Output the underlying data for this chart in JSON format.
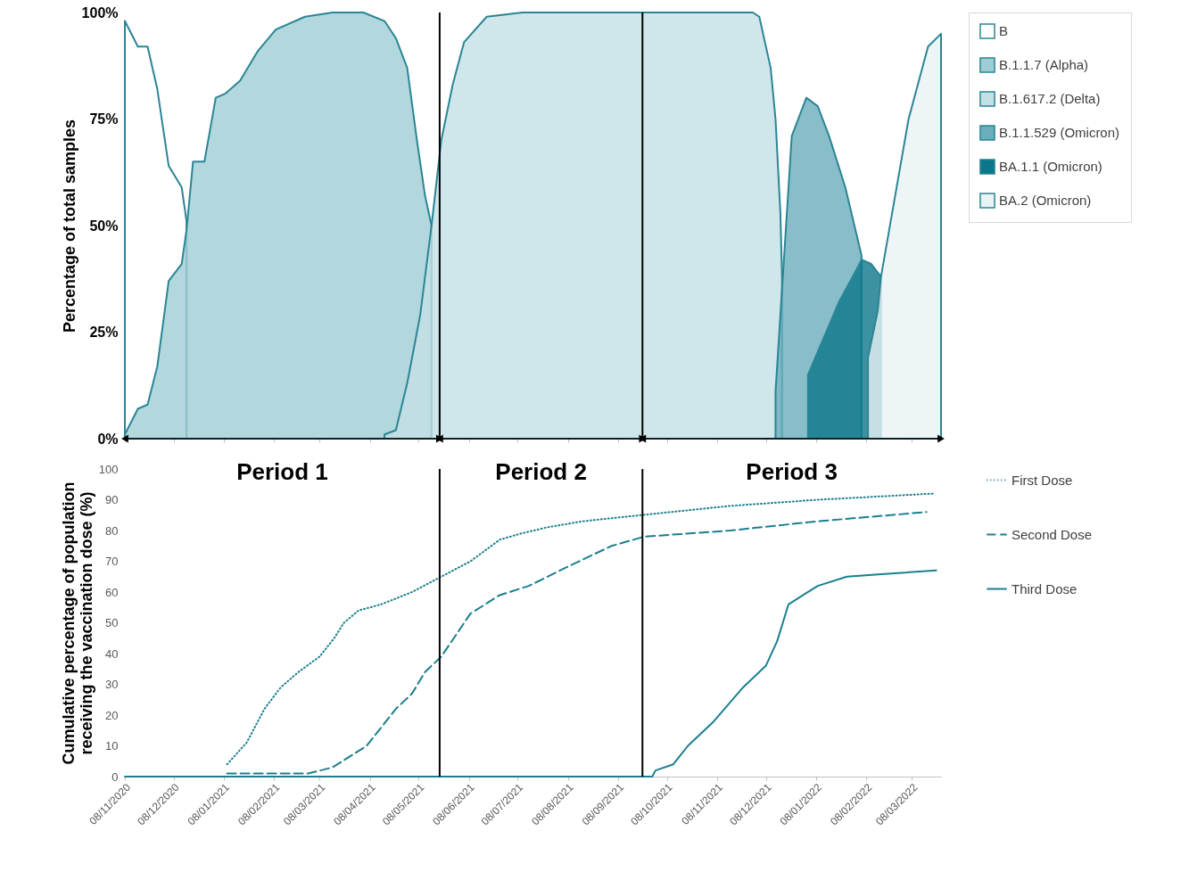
{
  "chart_data": [
    {
      "type": "area",
      "ylabel": "Percentage of total samples",
      "xlim": [
        "2020-11-08",
        "2022-03-26"
      ],
      "ylim": [
        0,
        100
      ],
      "xticks": [
        {
          "value": "2020-11-08",
          "label": null
        },
        {
          "value": "2020-12-08",
          "label": null
        },
        {
          "value": "2021-01-08",
          "label": null
        },
        {
          "value": "2021-02-08",
          "label": null
        },
        {
          "value": "2021-03-08",
          "label": null
        },
        {
          "value": "2021-04-08",
          "label": null
        },
        {
          "value": "2021-05-08",
          "label": null
        },
        {
          "value": "2021-06-08",
          "label": null
        },
        {
          "value": "2021-07-08",
          "label": null
        },
        {
          "value": "2021-08-08",
          "label": null
        },
        {
          "value": "2021-09-08",
          "label": null
        },
        {
          "value": "2021-10-08",
          "label": null
        },
        {
          "value": "2021-11-08",
          "label": null
        },
        {
          "value": "2021-12-08",
          "label": null
        },
        {
          "value": "2022-01-08",
          "label": null
        },
        {
          "value": "2022-02-08",
          "label": null
        },
        {
          "value": "2022-03-08",
          "label": null
        }
      ],
      "yticks": [
        {
          "value": 0,
          "label": "0%"
        },
        {
          "value": 25,
          "label": "25%"
        },
        {
          "value": 50,
          "label": "50%"
        },
        {
          "value": 75,
          "label": "75%"
        },
        {
          "value": 100,
          "label": "100%"
        }
      ],
      "tick_labels": "y",
      "legend": "right",
      "grid": false,
      "ref_lines": [
        {
          "axis": "x",
          "value": "2021-05-21",
          "color": "#000000"
        },
        {
          "axis": "x",
          "value": "2021-09-23",
          "color": "#000000"
        }
      ],
      "series": [
        {
          "name": "B",
          "color": "#ffffff",
          "x": [
            "2020-11-08",
            "2020-11-16",
            "2020-11-22",
            "2020-11-28",
            "2020-12-05",
            "2020-12-13",
            "2020-12-16"
          ],
          "values": [
            98,
            92,
            92,
            82,
            64,
            59,
            51
          ]
        },
        {
          "name": "B.1.1.7 (Alpha)",
          "color": "#9fcdd5",
          "x": [
            "2020-11-08",
            "2020-11-16",
            "2020-11-22",
            "2020-11-28",
            "2020-12-05",
            "2020-12-13",
            "2020-12-16",
            "2020-12-20",
            "2020-12-27",
            "2021-01-03",
            "2021-01-09",
            "2021-01-18",
            "2021-01-29",
            "2021-02-09",
            "2021-02-27",
            "2021-03-16",
            "2021-04-04",
            "2021-04-17",
            "2021-04-24",
            "2021-05-01",
            "2021-05-07",
            "2021-05-12",
            "2021-05-16"
          ],
          "values": [
            1,
            7,
            8,
            17,
            37,
            41,
            49,
            65,
            65,
            80,
            81,
            84,
            91,
            96,
            99,
            100,
            100,
            98,
            94,
            87,
            70,
            57,
            50
          ]
        },
        {
          "name": "B.1.617.2 (Delta)",
          "color": "#c3e0e5",
          "x": [
            "2021-04-17",
            "2021-04-24",
            "2021-05-01",
            "2021-05-09",
            "2021-05-16",
            "2021-05-22",
            "2021-05-29",
            "2021-06-05",
            "2021-06-19",
            "2021-07-11",
            "2021-11-30",
            "2021-12-04",
            "2021-12-11",
            "2021-12-14",
            "2021-12-17",
            "2021-12-18"
          ],
          "values": [
            1,
            2,
            13,
            29,
            50,
            70,
            83,
            93,
            99,
            100,
            100,
            99,
            87,
            75,
            53,
            38
          ]
        },
        {
          "name": "B.1.1.529 (Omicron)",
          "color": "#6aaebb",
          "x": [
            "2021-12-14",
            "2021-12-24",
            "2022-01-02",
            "2022-01-09",
            "2022-01-16",
            "2022-01-26",
            "2022-02-05"
          ],
          "values": [
            11,
            71,
            80,
            78,
            71,
            59,
            43
          ]
        },
        {
          "name": "BA.1.1  (Omicron)",
          "color": "#0b7789",
          "x": [
            "2022-01-03",
            "2022-01-22",
            "2022-02-01",
            "2022-02-05",
            "2022-02-11",
            "2022-02-17"
          ],
          "values": [
            15,
            32,
            39,
            42,
            41,
            38
          ]
        },
        {
          "name": "BA.2  (Omicron)",
          "color": "#e8f3f5",
          "x": [
            "2022-02-09",
            "2022-02-15",
            "2022-02-17",
            "2022-03-06",
            "2022-03-18",
            "2022-03-26"
          ],
          "values": [
            19,
            30,
            38,
            75,
            92,
            95
          ]
        }
      ]
    },
    {
      "type": "line",
      "ylabel": "Cumulative percentage of population receiving the vaccination dose (%)",
      "xlim": [
        "2020-11-08",
        "2022-03-26"
      ],
      "ylim": [
        0,
        100
      ],
      "xticks": [
        {
          "value": "2020-11-08",
          "label": "08/11/2020"
        },
        {
          "value": "2020-12-08",
          "label": "08/12/2020"
        },
        {
          "value": "2021-01-08",
          "label": "08/01/2021"
        },
        {
          "value": "2021-02-08",
          "label": "08/02/2021"
        },
        {
          "value": "2021-03-08",
          "label": "08/03/2021"
        },
        {
          "value": "2021-04-08",
          "label": "08/04/2021"
        },
        {
          "value": "2021-05-08",
          "label": "08/05/2021"
        },
        {
          "value": "2021-06-08",
          "label": "08/06/2021"
        },
        {
          "value": "2021-07-08",
          "label": "08/07/2021"
        },
        {
          "value": "2021-08-08",
          "label": "08/08/2021"
        },
        {
          "value": "2021-09-08",
          "label": "08/09/2021"
        },
        {
          "value": "2021-10-08",
          "label": "08/10/2021"
        },
        {
          "value": "2021-11-08",
          "label": "08/11/2021"
        },
        {
          "value": "2021-12-08",
          "label": "08/12/2021"
        },
        {
          "value": "2022-01-08",
          "label": "08/01/2022"
        },
        {
          "value": "2022-02-08",
          "label": "08/02/2022"
        },
        {
          "value": "2022-03-08",
          "label": "08/03/2022"
        }
      ],
      "yticks": [
        0,
        10,
        20,
        30,
        40,
        50,
        60,
        70,
        80,
        90,
        100
      ],
      "legend": "right",
      "grid": false,
      "ref_lines": [
        {
          "axis": "x",
          "value": "2021-05-21",
          "color": "#000000"
        },
        {
          "axis": "x",
          "value": "2021-09-23",
          "color": "#000000"
        }
      ],
      "annotations": [
        "Period 1",
        "Period 2",
        "Period 3"
      ],
      "series": [
        {
          "name": "First Dose",
          "color": "#1a7f8e",
          "line_style": "dotted",
          "x": [
            "2021-01-10",
            "2021-01-22",
            "2021-02-02",
            "2021-02-12",
            "2021-02-23",
            "2021-03-08",
            "2021-03-17",
            "2021-03-23",
            "2021-04-01",
            "2021-04-15",
            "2021-05-04",
            "2021-05-22",
            "2021-06-09",
            "2021-06-27",
            "2021-07-10",
            "2021-07-26",
            "2021-08-17",
            "2021-09-22",
            "2021-11-16",
            "2022-01-09",
            "2022-03-21"
          ],
          "values": [
            4,
            11,
            22,
            29,
            34,
            39,
            45,
            50,
            54,
            56,
            60,
            65,
            70,
            77,
            79,
            81,
            83,
            85,
            88,
            90,
            92
          ]
        },
        {
          "name": "Second Dose",
          "color": "#1a7f8e",
          "line_style": "dashed",
          "x": [
            "2021-01-10",
            "2021-02-02",
            "2021-03-01",
            "2021-03-16",
            "2021-03-28",
            "2021-04-06",
            "2021-04-15",
            "2021-04-24",
            "2021-05-04",
            "2021-05-12",
            "2021-05-22",
            "2021-06-09",
            "2021-06-27",
            "2021-07-15",
            "2021-08-07",
            "2021-09-04",
            "2021-09-24",
            "2021-11-16",
            "2022-01-09",
            "2022-03-17"
          ],
          "values": [
            1,
            1,
            1,
            3,
            7,
            10,
            16,
            22,
            27,
            34,
            39,
            53,
            59,
            62,
            68,
            75,
            78,
            80,
            83,
            86
          ]
        },
        {
          "name": "Third Dose",
          "color": "#1a7f8e",
          "line_style": "solid",
          "x": [
            "2020-11-08",
            "2021-09-29",
            "2021-10-01",
            "2021-10-12",
            "2021-10-21",
            "2021-11-06",
            "2021-11-24",
            "2021-12-08",
            "2021-12-15",
            "2021-12-22",
            "2021-12-31",
            "2022-01-09",
            "2022-01-27",
            "2022-02-23",
            "2022-03-23"
          ],
          "values": [
            0,
            0,
            2,
            4,
            10,
            18,
            29,
            36,
            44,
            56,
            59,
            62,
            65,
            66,
            67
          ]
        }
      ]
    }
  ]
}
